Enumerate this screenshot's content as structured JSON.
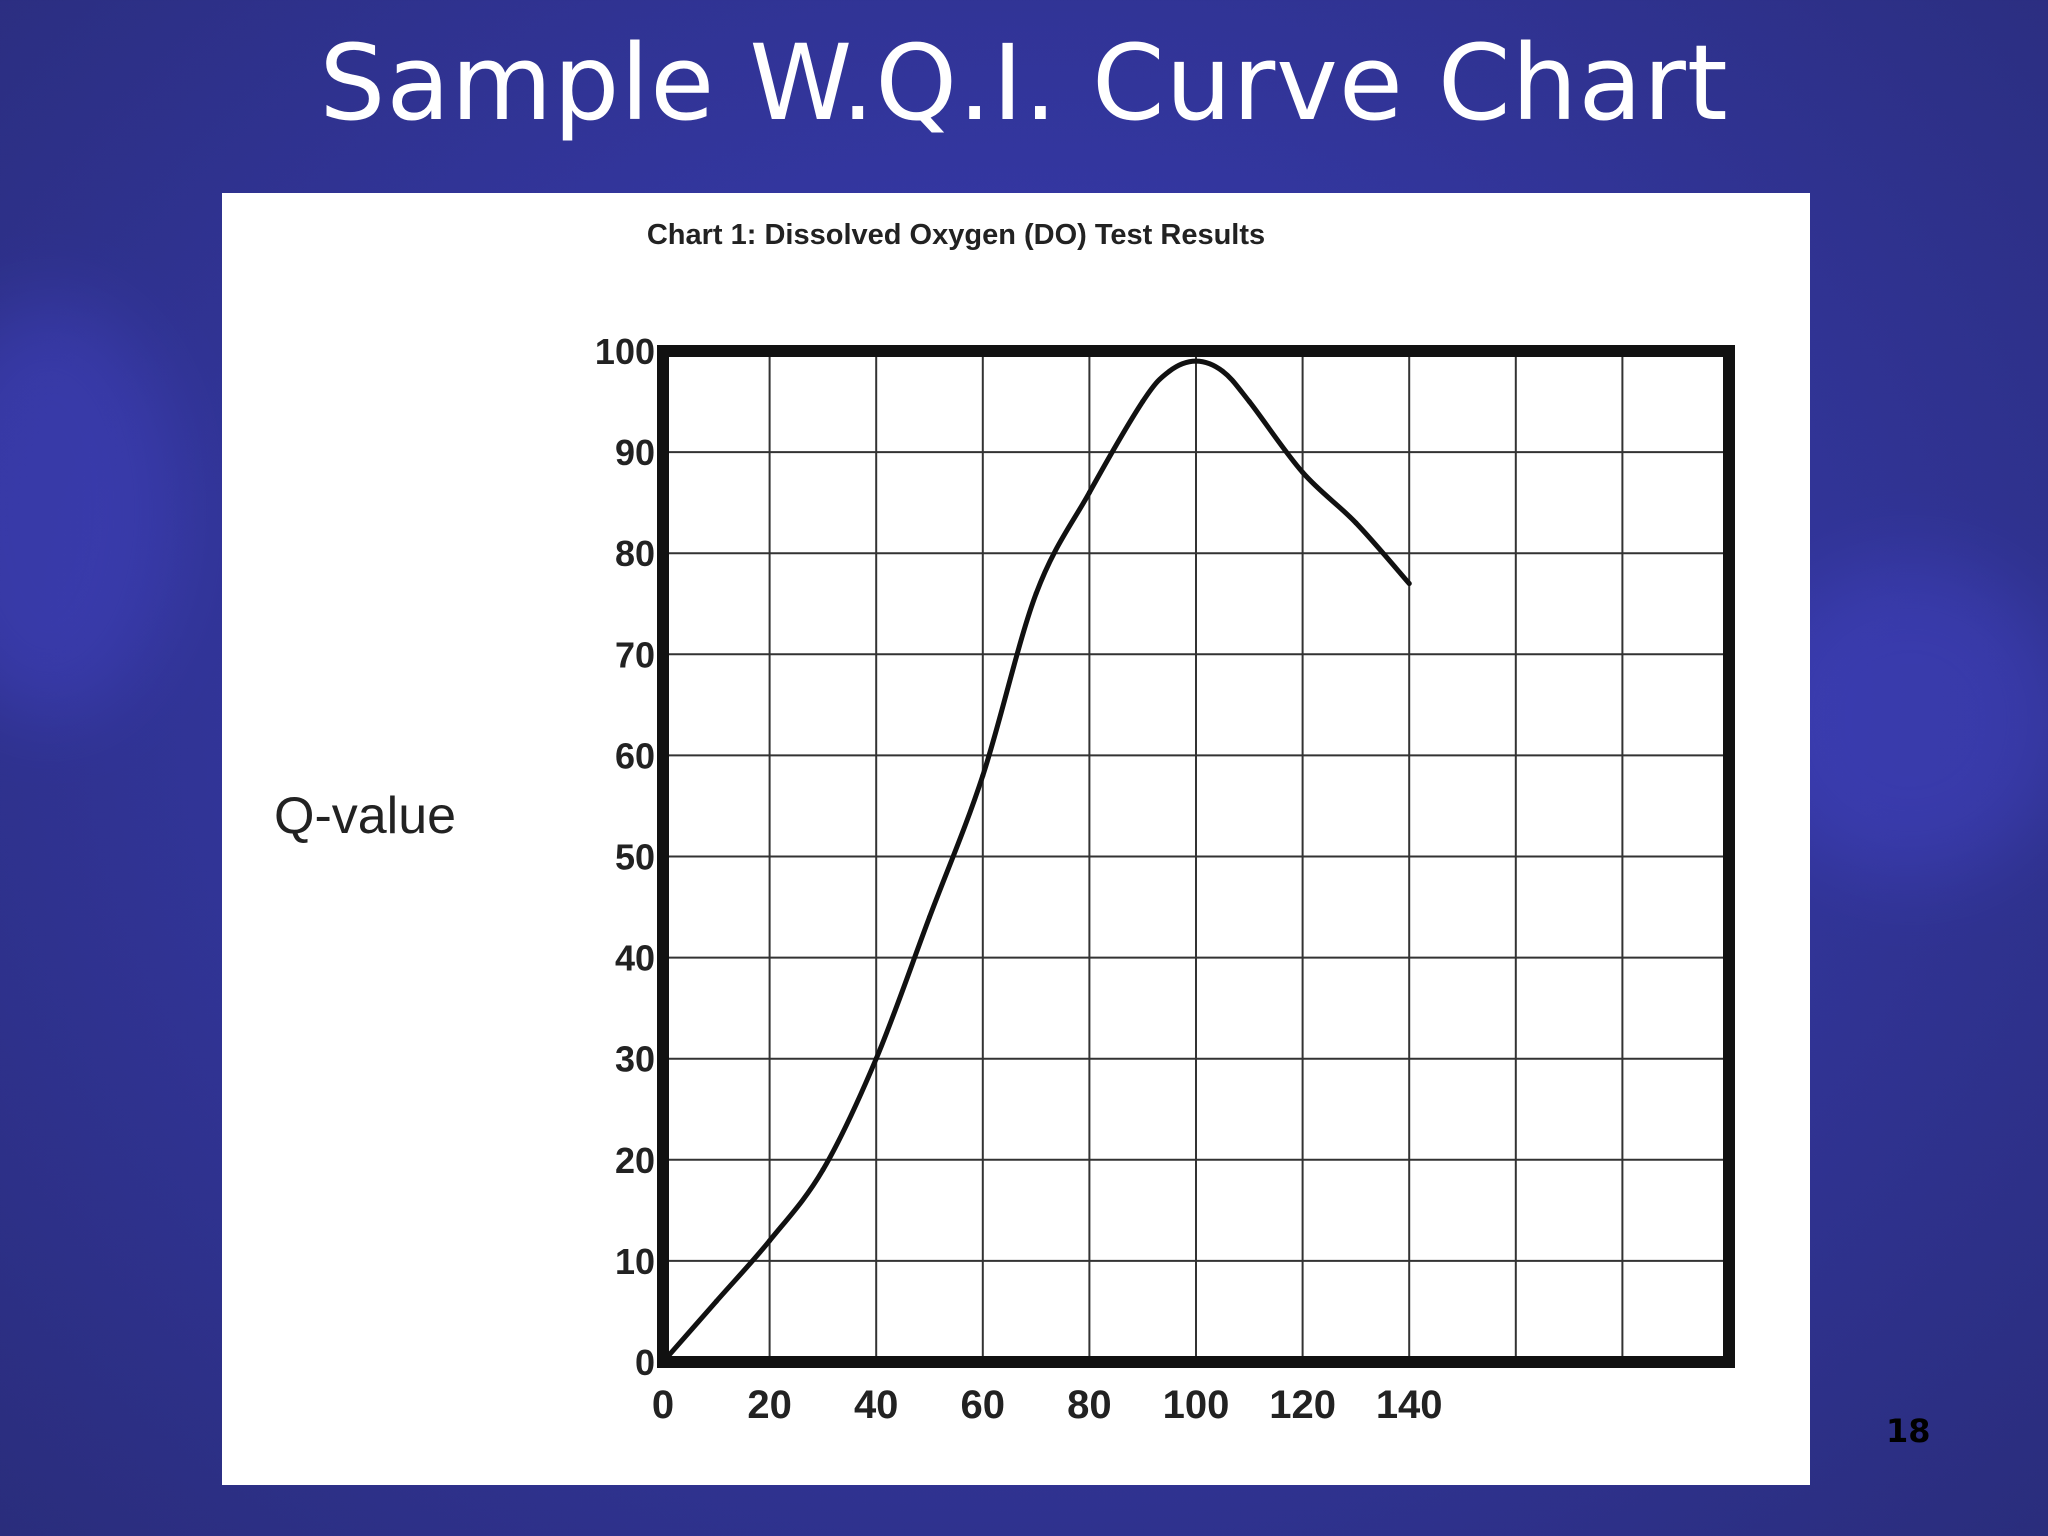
{
  "slide": {
    "title": "Sample W.Q.I. Curve Chart",
    "number": "18"
  },
  "chart_data": {
    "type": "line",
    "title": "Chart 1: Dissolved Oxygen (DO) Test Results",
    "ylabel": "Q-value",
    "xlabel": "",
    "xlim": [
      0,
      200
    ],
    "ylim": [
      0,
      100
    ],
    "x_ticks": [
      0,
      20,
      40,
      60,
      80,
      100,
      120,
      140
    ],
    "y_ticks": [
      0,
      10,
      20,
      30,
      40,
      50,
      60,
      70,
      80,
      90,
      100
    ],
    "grid": true,
    "series": [
      {
        "x": [
          0,
          10,
          20,
          30,
          40,
          50,
          60,
          70,
          80,
          90,
          95,
          100,
          105,
          110,
          120,
          130,
          140
        ],
        "y": [
          0,
          6,
          12,
          19,
          30,
          44,
          58,
          76,
          86,
          95,
          98,
          99,
          98,
          95,
          88,
          83,
          77
        ]
      }
    ],
    "colors": {
      "line": "#111111",
      "grid": "#333333",
      "frame": "#111111"
    }
  }
}
